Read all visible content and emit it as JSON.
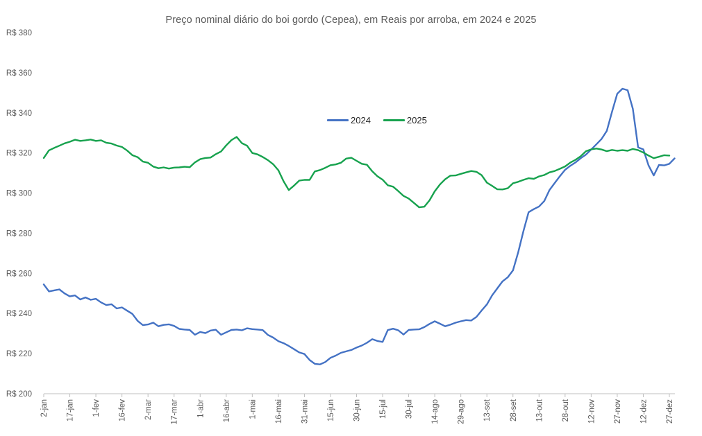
{
  "chart": {
    "title": "Preço nominal diário do boi gordo (Cepea), em Reais por arroba, em 2024 e 2025",
    "legend": [
      {
        "label": "2024",
        "color": "#4472C4"
      },
      {
        "label": "2025",
        "color": "#17A24E"
      }
    ],
    "axis_color": "#BFBFBF",
    "label_color": "#595959"
  },
  "chart_data": {
    "type": "line",
    "title": "Preço nominal diário do boi gordo (Cepea), em Reais por arroba, em 2024 e 2025",
    "unit": "Reais por arroba (R$/@)",
    "grid": false,
    "legend_position": "inside-top-center",
    "y_axis": {
      "min": 200,
      "max": 380,
      "step": 20,
      "prefix": "R$",
      "tick_labels": [
        "R$ 380",
        "R$ 360",
        "R$ 340",
        "R$ 320",
        "R$ 300",
        "R$ 280",
        "R$ 260",
        "R$ 240",
        "R$ 220",
        "R$ 200"
      ]
    },
    "x_axis": {
      "tick_labels": [
        "2-jan",
        "17-jan",
        "1-fev",
        "16-fev",
        "2-mar",
        "17-mar",
        "1-abr",
        "16-abr",
        "1-mai",
        "16-mai",
        "31-mai",
        "15-jun",
        "30-jun",
        "15-jul",
        "30-jul",
        "14-ago",
        "29-ago",
        "13-set",
        "28-set",
        "13-out",
        "28-out",
        "12-nov",
        "27-nov",
        "12-dez",
        "27-dez"
      ],
      "tick_day_start": 0,
      "tick_day_step": 15,
      "description": "dias a partir de 2-jan, rótulos a cada 15 dias"
    },
    "x_day_start": 0,
    "x_day_step": 3,
    "series": [
      {
        "name": "2024",
        "color": "#4472C4",
        "values": [
          254.5,
          251,
          251.5,
          252,
          250,
          248.5,
          249,
          247,
          248,
          246.8,
          247.3,
          245.5,
          244.2,
          244.6,
          242.5,
          243,
          241.4,
          239.8,
          236.3,
          234.2,
          234.5,
          235.4,
          233.6,
          234.3,
          234.6,
          233.8,
          232.3,
          232,
          231.8,
          229.4,
          230.8,
          230.2,
          231.5,
          231.9,
          229.4,
          230.6,
          231.8,
          232,
          231.6,
          232.6,
          232.2,
          232,
          231.7,
          229.3,
          228,
          226.2,
          225.2,
          223.8,
          222.2,
          220.6,
          219.8,
          216.8,
          214.9,
          214.6,
          215.8,
          217.9,
          219,
          220.4,
          221.1,
          221.8,
          223,
          224,
          225.4,
          227.2,
          226.3,
          225.8,
          231.7,
          232.4,
          231.6,
          229.5,
          231.8,
          232,
          232.1,
          233.2,
          234.8,
          236.1,
          234.9,
          233.6,
          234.4,
          235.4,
          236.1,
          236.7,
          236.5,
          238.3,
          241.5,
          244.5,
          249,
          252.5,
          256,
          258,
          261.5,
          270.5,
          281,
          290.5,
          292,
          293.3,
          296,
          301.5,
          305,
          308.4,
          311.6,
          313.6,
          315.3,
          317.4,
          319.2,
          321.7,
          324.3,
          327,
          331,
          340.5,
          349.5,
          352,
          351.3,
          342,
          322.8,
          321.8,
          313.8,
          308.8,
          314,
          313.8,
          314.6,
          317.3
        ]
      },
      {
        "name": "2025",
        "color": "#17A24E",
        "values": [
          317.5,
          321.3,
          322.5,
          323.6,
          324.8,
          325.6,
          326.6,
          326,
          326.3,
          326.7,
          326,
          326.3,
          325.1,
          324.7,
          323.7,
          323,
          321.2,
          318.9,
          317.9,
          315.7,
          315.1,
          313.2,
          312.4,
          312.8,
          312.2,
          312.7,
          312.8,
          313.1,
          312.9,
          315.3,
          316.9,
          317.5,
          317.7,
          319.4,
          320.7,
          323.8,
          326.4,
          328,
          324.9,
          323.6,
          320,
          319.3,
          318,
          316.4,
          314.4,
          311.4,
          305.9,
          301.5,
          303.7,
          306.2,
          306.6,
          306.6,
          310.8,
          311.5,
          312.6,
          313.9,
          314.3,
          315.1,
          317.2,
          317.6,
          316.1,
          314.6,
          314.1,
          310.9,
          308.4,
          306.7,
          303.9,
          303.2,
          301,
          298.6,
          297.3,
          295.1,
          292.9,
          293.2,
          296.4,
          300.9,
          304.3,
          306.9,
          308.7,
          308.8,
          309.6,
          310.3,
          311,
          310.6,
          308.9,
          305.2,
          303.6,
          301.9,
          301.8,
          302.4,
          304.9,
          305.6,
          306.6,
          307.4,
          307.1,
          308.3,
          309,
          310.3,
          311,
          312.1,
          313.3,
          315.2,
          316.6,
          318.4,
          320.9,
          321.8,
          322.2,
          321.7,
          320.9,
          321.5,
          321.1,
          321.4,
          321.1,
          322,
          321.4,
          320.2,
          318.7,
          317.4,
          318.1,
          318.9,
          318.7,
          null
        ]
      }
    ]
  }
}
